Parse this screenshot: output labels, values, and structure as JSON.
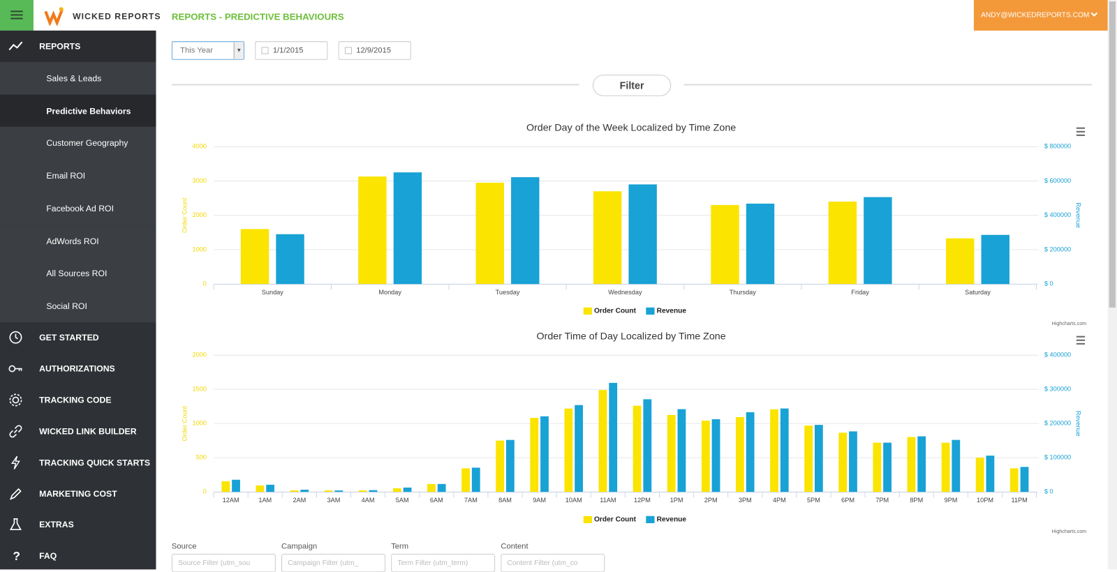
{
  "header": {
    "brand": "WICKED REPORTS",
    "page_title": "REPORTS - PREDICTIVE BEHAVIOURS",
    "user": "ANDY@WICKEDREPORTS.COM"
  },
  "sidebar": {
    "section": "REPORTS",
    "subitems": [
      "Sales & Leads",
      "Predictive Behaviors",
      "Customer Geography",
      "Email ROI",
      "Facebook Ad ROI",
      "AdWords ROI",
      "All Sources ROI",
      "Social ROI"
    ],
    "items": [
      "GET STARTED",
      "AUTHORIZATIONS",
      "TRACKING CODE",
      "WICKED LINK BUILDER",
      "TRACKING QUICK STARTS",
      "MARKETING COST",
      "EXTRAS",
      "FAQ"
    ]
  },
  "controls": {
    "range": "This Year",
    "start_date": "1/1/2015",
    "end_date": "12/9/2015",
    "filter_button": "Filter"
  },
  "chart_data": [
    {
      "type": "bar",
      "title": "Order Day of the Week Localized by Time Zone",
      "categories": [
        "Sunday",
        "Monday",
        "Tuesday",
        "Wednesday",
        "Thursday",
        "Friday",
        "Saturday"
      ],
      "series": [
        {
          "name": "Order Count",
          "color": "#fbe400",
          "values": [
            1600,
            3130,
            2950,
            2700,
            2300,
            2400,
            1330
          ]
        },
        {
          "name": "Revenue",
          "color": "#18a2d5",
          "axis": "y2",
          "values": [
            290000,
            650000,
            622000,
            580000,
            468000,
            506000,
            286000
          ]
        }
      ],
      "y_label": "Order Count",
      "y2_label": "Revenue",
      "ylim": [
        0,
        4000
      ],
      "yticks": [
        0,
        1000,
        2000,
        3000,
        4000
      ],
      "y2lim": [
        0,
        800000
      ],
      "y2ticks": [
        {
          "value": 0,
          "label": "$ 0"
        },
        {
          "value": 200000,
          "label": "$ 200000"
        },
        {
          "value": 400000,
          "label": "$ 400000"
        },
        {
          "value": 600000,
          "label": "$ 600000"
        },
        {
          "value": 800000,
          "label": "$ 800000"
        }
      ],
      "grid": true,
      "credits": "Highcharts.com"
    },
    {
      "type": "bar",
      "title": "Order Time of Day Localized by Time Zone",
      "categories": [
        "12AM",
        "1AM",
        "2AM",
        "3AM",
        "4AM",
        "5AM",
        "6AM",
        "7AM",
        "8AM",
        "9AM",
        "10AM",
        "11AM",
        "12PM",
        "1PM",
        "2PM",
        "3PM",
        "4PM",
        "5PM",
        "6PM",
        "7PM",
        "8PM",
        "9PM",
        "10PM",
        "11PM"
      ],
      "series": [
        {
          "name": "Order Count",
          "color": "#fbe400",
          "values": [
            156,
            94,
            21,
            20,
            20,
            52,
            115,
            344,
            750,
            1083,
            1219,
            1490,
            1260,
            1125,
            1042,
            1094,
            1208,
            969,
            865,
            719,
            802,
            719,
            500,
            344
          ]
        },
        {
          "name": "Revenue",
          "color": "#18a2d5",
          "axis": "y2",
          "values": [
            35400,
            20800,
            6250,
            4000,
            5000,
            12500,
            23000,
            70800,
            152000,
            221000,
            254000,
            319000,
            271000,
            242000,
            212500,
            233000,
            244000,
            196000,
            177000,
            144000,
            162500,
            152000,
            106000,
            73000
          ]
        }
      ],
      "y_label": "Order Count",
      "y2_label": "Revenue",
      "ylim": [
        0,
        2000
      ],
      "yticks": [
        0,
        500,
        1000,
        1500,
        2000
      ],
      "y2lim": [
        0,
        400000
      ],
      "y2ticks": [
        {
          "value": 0,
          "label": "$ 0"
        },
        {
          "value": 100000,
          "label": "$ 100000"
        },
        {
          "value": 200000,
          "label": "$ 200000"
        },
        {
          "value": 300000,
          "label": "$ 300000"
        },
        {
          "value": 400000,
          "label": "$ 400000"
        }
      ],
      "grid": true,
      "credits": "Highcharts.com"
    }
  ],
  "filters": [
    {
      "label": "Source",
      "placeholder": "Source Filter (utm_sou"
    },
    {
      "label": "Campaign",
      "placeholder": "Campaign Filter (utm_"
    },
    {
      "label": "Term",
      "placeholder": "Term Filter (utm_term)"
    },
    {
      "label": "Content",
      "placeholder": "Content Filter (utm_co"
    }
  ]
}
